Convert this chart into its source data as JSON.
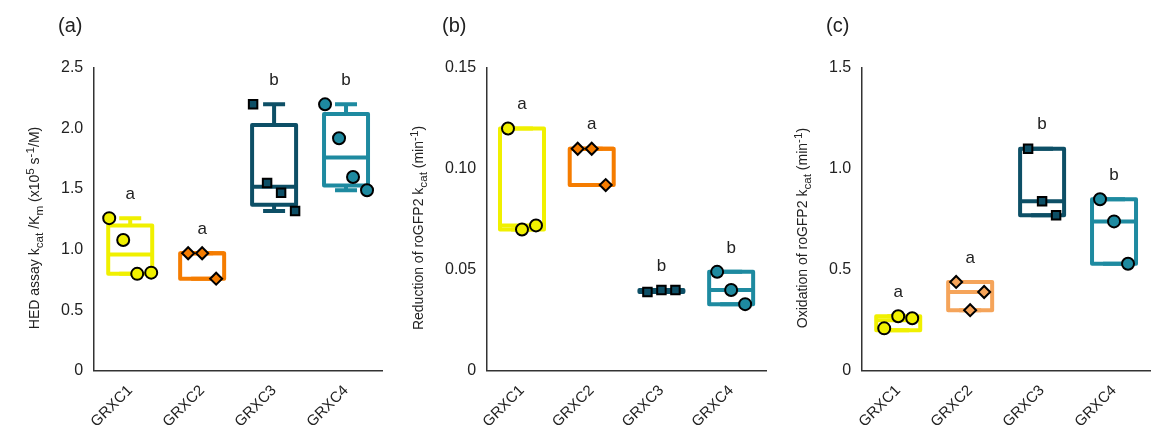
{
  "chart_data": [
    {
      "type": "box",
      "title": "(a)",
      "ylabel": "HED assay k$_{cat}$ /K$_{m}$ (x10$^{5}$ s$^{-1}$/M)",
      "categories": [
        "GRXC1",
        "GRXC2",
        "GRXC3",
        "GRXC4"
      ],
      "ylim": [
        0,
        2.5
      ],
      "yticks": [
        {
          "value": 0,
          "label": "0"
        },
        {
          "value": 0.5,
          "label": "0.5"
        },
        {
          "value": 1,
          "label": "1.0"
        },
        {
          "value": 1.5,
          "label": "1.5"
        },
        {
          "value": 2,
          "label": "2.0"
        },
        {
          "value": 2.5,
          "label": "2.5"
        }
      ],
      "colors": [
        "#f0f000",
        "#f57c00",
        "#0d4f66",
        "#1e8aa0"
      ],
      "boxes": [
        {
          "low": 0.8,
          "q1": 0.8,
          "median": 0.96,
          "q3": 1.2,
          "high": 1.26
        },
        {
          "low": 0.76,
          "q1": 0.76,
          "median": 0.97,
          "q3": 0.97,
          "high": 0.97
        },
        {
          "low": 1.32,
          "q1": 1.37,
          "median": 1.52,
          "q3": 2.03,
          "high": 2.2
        },
        {
          "low": 1.49,
          "q1": 1.53,
          "median": 1.76,
          "q3": 2.12,
          "high": 2.2
        }
      ],
      "series": [
        {
          "type": "scatter",
          "x": [
            "GRXC1",
            "GRXC1",
            "GRXC1",
            "GRXC1"
          ],
          "values": [
            1.26,
            1.08,
            0.8,
            0.81
          ],
          "color": "#f0f000",
          "marker": "circle"
        },
        {
          "type": "scatter",
          "x": [
            "GRXC2",
            "GRXC2",
            "GRXC2"
          ],
          "values": [
            0.97,
            0.97,
            0.76
          ],
          "color": "#f57c00",
          "marker": "diamond"
        },
        {
          "type": "scatter",
          "x": [
            "GRXC3",
            "GRXC3",
            "GRXC3",
            "GRXC3"
          ],
          "values": [
            2.2,
            1.55,
            1.47,
            1.32
          ],
          "color": "#0d4f66",
          "marker": "square"
        },
        {
          "type": "scatter",
          "x": [
            "GRXC4",
            "GRXC4",
            "GRXC4",
            "GRXC4"
          ],
          "values": [
            2.2,
            1.92,
            1.6,
            1.49
          ],
          "color": "#1e8aa0",
          "marker": "circle"
        }
      ],
      "annotations": [
        "a",
        "a",
        "b",
        "b"
      ]
    },
    {
      "type": "box",
      "title": "(b)",
      "ylabel": "Reduction of roGFP2 k$_{cat}$ (min$^{-1}$)",
      "categories": [
        "GRXC1",
        "GRXC2",
        "GRXC3",
        "GRXC4"
      ],
      "ylim": [
        0,
        0.15
      ],
      "yticks": [
        {
          "value": 0,
          "label": "0"
        },
        {
          "value": 0.05,
          "label": "0.05"
        },
        {
          "value": 0.1,
          "label": "0.10"
        },
        {
          "value": 0.15,
          "label": "0.15"
        }
      ],
      "colors": [
        "#f0f000",
        "#f57c00",
        "#0d4f66",
        "#1e8aa0"
      ],
      "boxes": [
        {
          "low": 0.07,
          "q1": 0.07,
          "median": 0.072,
          "q3": 0.12,
          "high": 0.12
        },
        {
          "low": 0.092,
          "q1": 0.092,
          "median": 0.11,
          "q3": 0.11,
          "high": 0.11
        },
        {
          "low": 0.039,
          "q1": 0.039,
          "median": 0.04,
          "q3": 0.04,
          "high": 0.04
        },
        {
          "low": 0.033,
          "q1": 0.033,
          "median": 0.04,
          "q3": 0.049,
          "high": 0.049
        }
      ],
      "series": [
        {
          "type": "scatter",
          "x": [
            "GRXC1",
            "GRXC1",
            "GRXC1"
          ],
          "values": [
            0.12,
            0.07,
            0.072
          ],
          "color": "#f0f000",
          "marker": "circle"
        },
        {
          "type": "scatter",
          "x": [
            "GRXC2",
            "GRXC2",
            "GRXC2"
          ],
          "values": [
            0.11,
            0.11,
            0.092
          ],
          "color": "#f57c00",
          "marker": "diamond"
        },
        {
          "type": "scatter",
          "x": [
            "GRXC3",
            "GRXC3",
            "GRXC3"
          ],
          "values": [
            0.039,
            0.04,
            0.04
          ],
          "color": "#0d4f66",
          "marker": "square"
        },
        {
          "type": "scatter",
          "x": [
            "GRXC4",
            "GRXC4",
            "GRXC4"
          ],
          "values": [
            0.049,
            0.04,
            0.033
          ],
          "color": "#1e8aa0",
          "marker": "circle"
        }
      ],
      "annotations": [
        "a",
        "a",
        "b",
        "b"
      ]
    },
    {
      "type": "box",
      "title": "(c)",
      "ylabel": "Oxidation of roGFP2 k$_{cat}$ (min$^{-1}$)",
      "categories": [
        "GRXC1",
        "GRXC2",
        "GRXC3",
        "GRXC4"
      ],
      "ylim": [
        0,
        1.5
      ],
      "yticks": [
        {
          "value": 0,
          "label": "0"
        },
        {
          "value": 0.5,
          "label": "0.5"
        },
        {
          "value": 1,
          "label": "1.0"
        },
        {
          "value": 1.5,
          "label": "1.5"
        }
      ],
      "colors": [
        "#f0f000",
        "#f5a45a",
        "#0d4f66",
        "#1e8aa0"
      ],
      "boxes": [
        {
          "low": 0.2,
          "q1": 0.2,
          "median": 0.25,
          "q3": 0.27,
          "high": 0.27
        },
        {
          "low": 0.3,
          "q1": 0.3,
          "median": 0.39,
          "q3": 0.44,
          "high": 0.44
        },
        {
          "low": 0.77,
          "q1": 0.77,
          "median": 0.84,
          "q3": 1.1,
          "high": 1.1
        },
        {
          "low": 0.53,
          "q1": 0.53,
          "median": 0.74,
          "q3": 0.85,
          "high": 0.85
        }
      ],
      "series": [
        {
          "type": "scatter",
          "x": [
            "GRXC1",
            "GRXC1",
            "GRXC1"
          ],
          "values": [
            0.21,
            0.27,
            0.26
          ],
          "color": "#f0f000",
          "marker": "circle"
        },
        {
          "type": "scatter",
          "x": [
            "GRXC2",
            "GRXC2",
            "GRXC2"
          ],
          "values": [
            0.44,
            0.3,
            0.39
          ],
          "color": "#f5a45a",
          "marker": "diamond"
        },
        {
          "type": "scatter",
          "x": [
            "GRXC3",
            "GRXC3",
            "GRXC3"
          ],
          "values": [
            1.1,
            0.84,
            0.77
          ],
          "color": "#0d4f66",
          "marker": "square"
        },
        {
          "type": "scatter",
          "x": [
            "GRXC4",
            "GRXC4",
            "GRXC4"
          ],
          "values": [
            0.85,
            0.74,
            0.53
          ],
          "color": "#1e8aa0",
          "marker": "circle"
        }
      ],
      "annotations": [
        "a",
        "a",
        "b",
        "b"
      ]
    }
  ]
}
